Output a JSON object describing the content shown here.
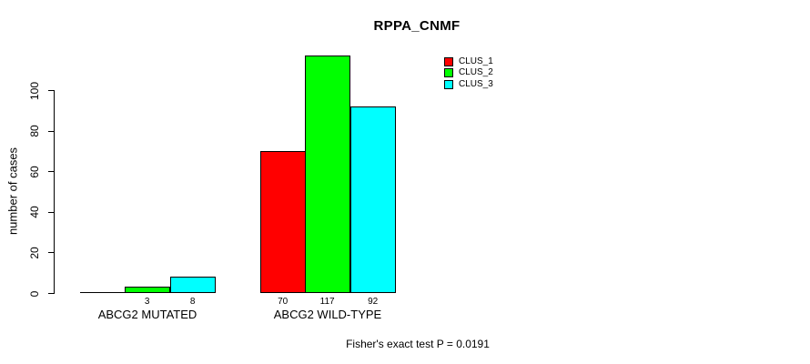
{
  "chart_data": {
    "type": "bar",
    "title": "RPPA_CNMF",
    "ylabel": "number of cases",
    "xlabel": "",
    "categories": [
      "ABCG2 MUTATED",
      "ABCG2 WILD-TYPE"
    ],
    "series": [
      {
        "name": "CLUS_1",
        "color": "#ff0000",
        "values": [
          0,
          70
        ]
      },
      {
        "name": "CLUS_2",
        "color": "#00ff00",
        "values": [
          3,
          117
        ]
      },
      {
        "name": "CLUS_3",
        "color": "#00ffff",
        "values": [
          8,
          92
        ]
      }
    ],
    "bar_value_labels": [
      [
        "",
        "3",
        "8"
      ],
      [
        "70",
        "117",
        "92"
      ]
    ],
    "yticks": [
      0,
      20,
      40,
      60,
      80,
      100
    ],
    "ylim": [
      0,
      117
    ],
    "grid": false,
    "legend_position": "top-right",
    "annotation": "Fisher's exact test P = 0.0191",
    "bar_border_color": "#000000",
    "text_color": "#000000",
    "background_color": "#ffffff"
  }
}
